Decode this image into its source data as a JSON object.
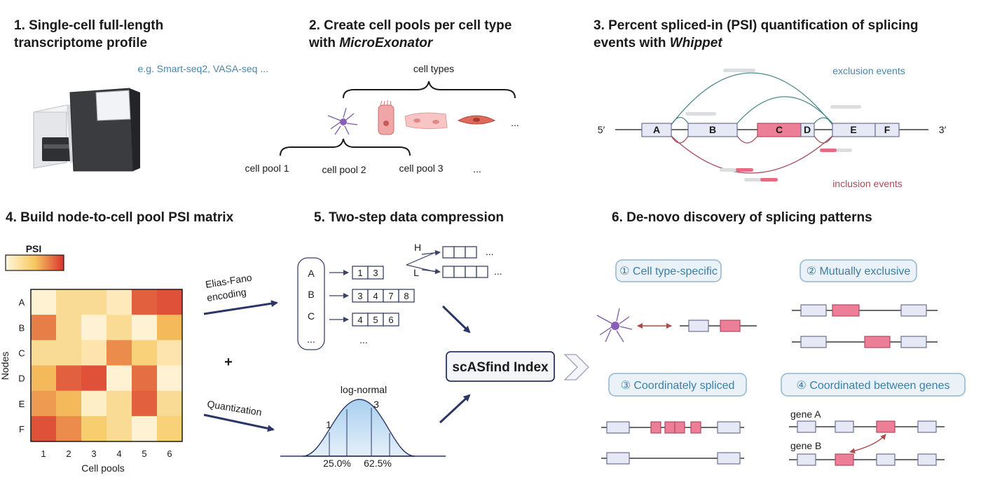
{
  "panel1": {
    "title_line1": "1. Single-cell full-length",
    "title_line2": "transcriptome profile",
    "example": "e.g. Smart-seq2, VASA-seq ..."
  },
  "panel2": {
    "title_line1": "2. Create cell pools per cell type",
    "title_line2_prefix": "with ",
    "title_line2_tool": "MicroExonator",
    "cell_types_label": "cell types",
    "types_ellipsis": "...",
    "pools": [
      "cell pool 1",
      "cell pool 2",
      "cell pool 3"
    ],
    "pools_ellipsis": "..."
  },
  "panel3": {
    "title_line1": "3. Percent spliced-in (PSI) quantification of splicing",
    "title_line2_prefix": "events with ",
    "title_line2_tool": "Whippet",
    "exclusion_label": "exclusion events",
    "inclusion_label": "inclusion events",
    "five_prime": "5′",
    "three_prime": "3′",
    "exons": [
      "A",
      "B",
      "C",
      "D",
      "E",
      "F"
    ]
  },
  "panel4": {
    "title": "4. Build node-to-cell pool PSI matrix",
    "legend_label": "PSI",
    "row_labels": [
      "A",
      "B",
      "C",
      "D",
      "E",
      "F"
    ],
    "col_labels": [
      "1",
      "2",
      "3",
      "4",
      "5",
      "6"
    ],
    "x_axis_label": "Cell pools",
    "y_axis_label": "Nodes",
    "matrix": [
      [
        0.05,
        0.3,
        0.3,
        0.15,
        0.85,
        0.9
      ],
      [
        0.75,
        0.3,
        0.05,
        0.3,
        0.05,
        0.55
      ],
      [
        0.3,
        0.3,
        0.2,
        0.7,
        0.4,
        0.2
      ],
      [
        0.55,
        0.85,
        0.9,
        0.05,
        0.8,
        0.05
      ],
      [
        0.65,
        0.55,
        0.1,
        0.3,
        0.85,
        0.3
      ],
      [
        0.9,
        0.7,
        0.45,
        0.3,
        0.05,
        0.4
      ]
    ],
    "color_low": "#fff7df",
    "color_mid": "#f7c860",
    "color_high": "#d9332e"
  },
  "panel5": {
    "title": "5. Two-step data compression",
    "encoding_line1": "Elias-Fano",
    "encoding_line2": "encoding",
    "plus": "+",
    "quantization": "Quantization",
    "nodes": [
      "A",
      "B",
      "C",
      "..."
    ],
    "lists": [
      [
        "1",
        "3"
      ],
      [
        "3",
        "4",
        "7",
        "8"
      ],
      [
        "4",
        "5",
        "6"
      ]
    ],
    "lists_ellipsis": "...",
    "split_high": "H",
    "split_low": "L",
    "split_ellipsis": "...",
    "distribution_label": "log-normal",
    "marker_1": "1",
    "marker_3": "3",
    "pct_1": "25.0%",
    "pct_2": "62.5%",
    "index_label": "scASfind Index"
  },
  "panel6": {
    "title": "6. De-novo discovery of splicing patterns",
    "patterns": [
      "① Cell type-specific",
      "② Mutually exclusive",
      "③ Coordinately spliced",
      "④ Coordinated between genes"
    ],
    "gene_a": "gene A",
    "gene_b": "gene B"
  },
  "colors": {
    "accent_blue": "#4a86a8",
    "accent_red": "#a84a5a",
    "navy": "#2b3566",
    "exon_pink": "#ec7f97",
    "exon_grey": "#e6e9f5"
  }
}
